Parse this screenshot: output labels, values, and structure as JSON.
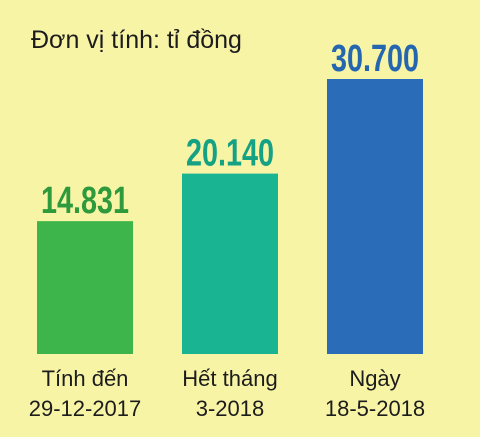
{
  "chart_data": {
    "type": "bar",
    "unit_label": "Đơn vị tính: tỉ đồng",
    "categories": [
      [
        "Tính đến",
        "29-12-2017"
      ],
      [
        "Hết tháng",
        "3-2018"
      ],
      [
        "Ngày",
        "18-5-2018"
      ]
    ],
    "values": [
      14831,
      20140,
      30700
    ],
    "value_labels": [
      "14.831",
      "20.140",
      "30.700"
    ],
    "colors": [
      "#3db54a",
      "#19b592",
      "#2a6cb7"
    ],
    "label_colors": [
      "#2e9a3c",
      "#15a183",
      "#2466b0"
    ],
    "ylim": [
      0,
      30700
    ],
    "grid": false,
    "legend": "none"
  }
}
